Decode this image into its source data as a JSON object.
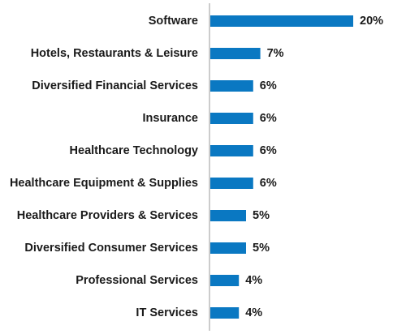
{
  "chart_data": {
    "type": "bar",
    "orientation": "horizontal",
    "categories": [
      "Software",
      "Hotels, Restaurants & Leisure",
      "Diversified Financial Services",
      "Insurance",
      "Healthcare Technology",
      "Healthcare Equipment & Supplies",
      "Healthcare Providers & Services",
      "Diversified Consumer Services",
      "Professional Services",
      "IT Services"
    ],
    "values": [
      20,
      7,
      6,
      6,
      6,
      6,
      5,
      5,
      4,
      4
    ],
    "value_labels": [
      "20%",
      "7%",
      "6%",
      "6%",
      "6%",
      "6%",
      "5%",
      "5%",
      "4%",
      "4%"
    ],
    "unit": "%",
    "title": "",
    "xlabel": "",
    "ylabel": "",
    "xlim": [
      0,
      20
    ],
    "grid": false,
    "legend": "none",
    "bar_color": "#0a78c2"
  }
}
